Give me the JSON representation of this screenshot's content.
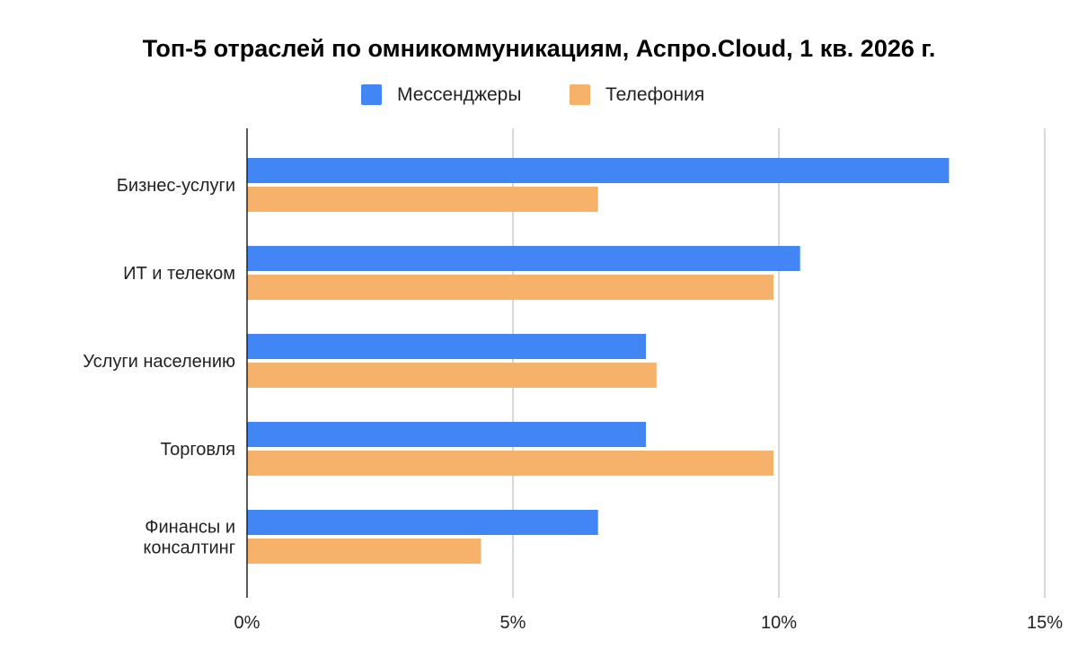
{
  "chart_data": {
    "type": "bar",
    "orientation": "horizontal",
    "title": "Топ-5 отраслей по омникоммуникациям, Аспро.Cloud, 1 кв. 2026 г.",
    "categories": [
      [
        "Бизнес-услуги"
      ],
      [
        "ИТ и телеком"
      ],
      [
        "Услуги населению"
      ],
      [
        "Торговля"
      ],
      [
        "Финансы и",
        "консалтинг"
      ]
    ],
    "series": [
      {
        "name": "Мессенджеры",
        "color": "#4285f4",
        "values": [
          13.2,
          10.4,
          7.5,
          7.5,
          6.6
        ]
      },
      {
        "name": "Телефония",
        "color": "#f6b26b",
        "values": [
          6.6,
          9.9,
          7.7,
          9.9,
          4.4
        ]
      }
    ],
    "xlim": [
      0,
      15
    ],
    "ticks": [
      0,
      5,
      10,
      15
    ],
    "tick_labels": [
      "0%",
      "5%",
      "10%",
      "15%"
    ],
    "grid": true,
    "legend_position": "top"
  }
}
